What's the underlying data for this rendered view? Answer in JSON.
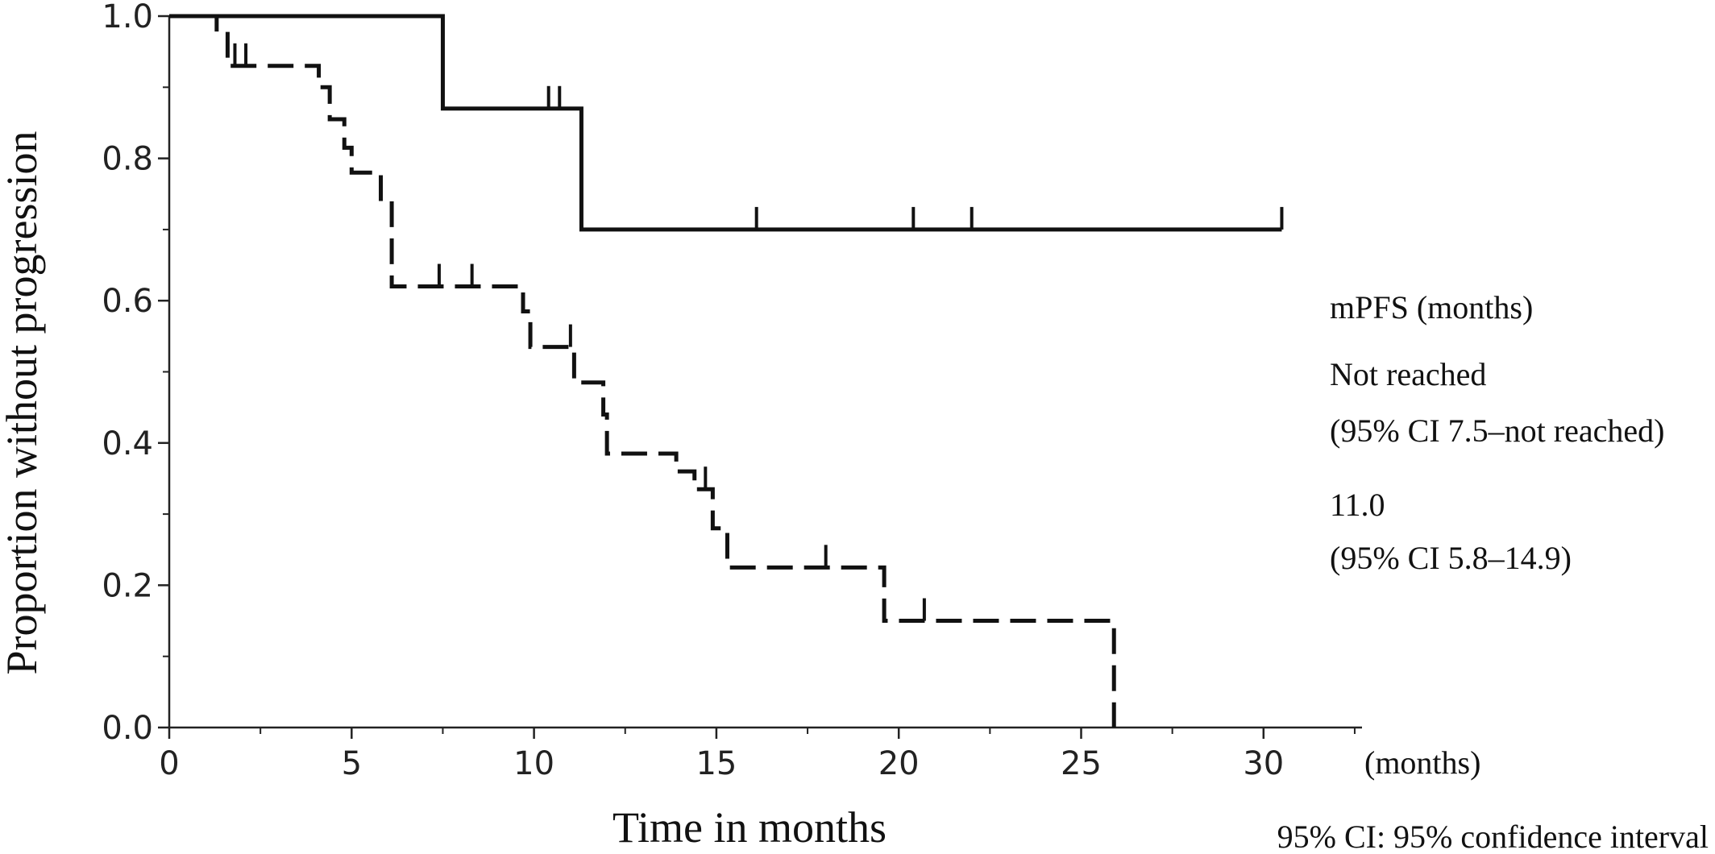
{
  "chart_data": {
    "type": "line",
    "title": "",
    "xlabel": "Time in months",
    "ylabel": "Proportion without progression",
    "x_unit_label": "(months)",
    "xlim": [
      0,
      32.7
    ],
    "ylim": [
      0,
      1.0
    ],
    "x_ticks": [
      0,
      5,
      10,
      15,
      20,
      25,
      30
    ],
    "x_tick_labels": [
      "0",
      "5",
      "10",
      "15",
      "20",
      "25",
      "30"
    ],
    "y_ticks": [
      0.0,
      0.2,
      0.4,
      0.6,
      0.8,
      1.0
    ],
    "y_tick_labels": [
      "0.0",
      "0.2",
      "0.4",
      "0.6",
      "0.8",
      "1.0"
    ],
    "grid": false,
    "series": [
      {
        "style": "solid",
        "color": "#111111",
        "steps": [
          [
            0,
            1.0
          ],
          [
            7.5,
            0.87
          ],
          [
            11.3,
            0.7
          ]
        ],
        "end_x": 30.5,
        "censor_x": [
          10.4,
          10.7,
          16.1,
          20.4,
          22.0,
          30.5
        ]
      },
      {
        "style": "dashed",
        "color": "#111111",
        "steps": [
          [
            0,
            1.0
          ],
          [
            1.3,
            0.975
          ],
          [
            1.6,
            0.93
          ],
          [
            4.1,
            0.9
          ],
          [
            4.4,
            0.855
          ],
          [
            4.8,
            0.815
          ],
          [
            5.0,
            0.78
          ],
          [
            5.8,
            0.74
          ],
          [
            6.1,
            0.62
          ],
          [
            9.7,
            0.585
          ],
          [
            9.9,
            0.535
          ],
          [
            11.1,
            0.485
          ],
          [
            11.9,
            0.44
          ],
          [
            12.0,
            0.385
          ],
          [
            13.9,
            0.36
          ],
          [
            14.4,
            0.335
          ],
          [
            14.9,
            0.28
          ],
          [
            15.3,
            0.225
          ],
          [
            19.6,
            0.15
          ],
          [
            25.9,
            0.0
          ]
        ],
        "end_x": 25.9,
        "censor_x": [
          1.8,
          2.1,
          7.4,
          8.3,
          11.0,
          14.7,
          18.0,
          20.7
        ]
      }
    ],
    "annotations": {
      "header": "mPFS (months)",
      "series1_median": "Not reached",
      "series1_ci": "(95% CI 7.5–not reached)",
      "series2_median": "11.0",
      "series2_ci": "(95% CI 5.8–14.9)",
      "footnote": "95% CI: 95% confidence interval"
    }
  }
}
